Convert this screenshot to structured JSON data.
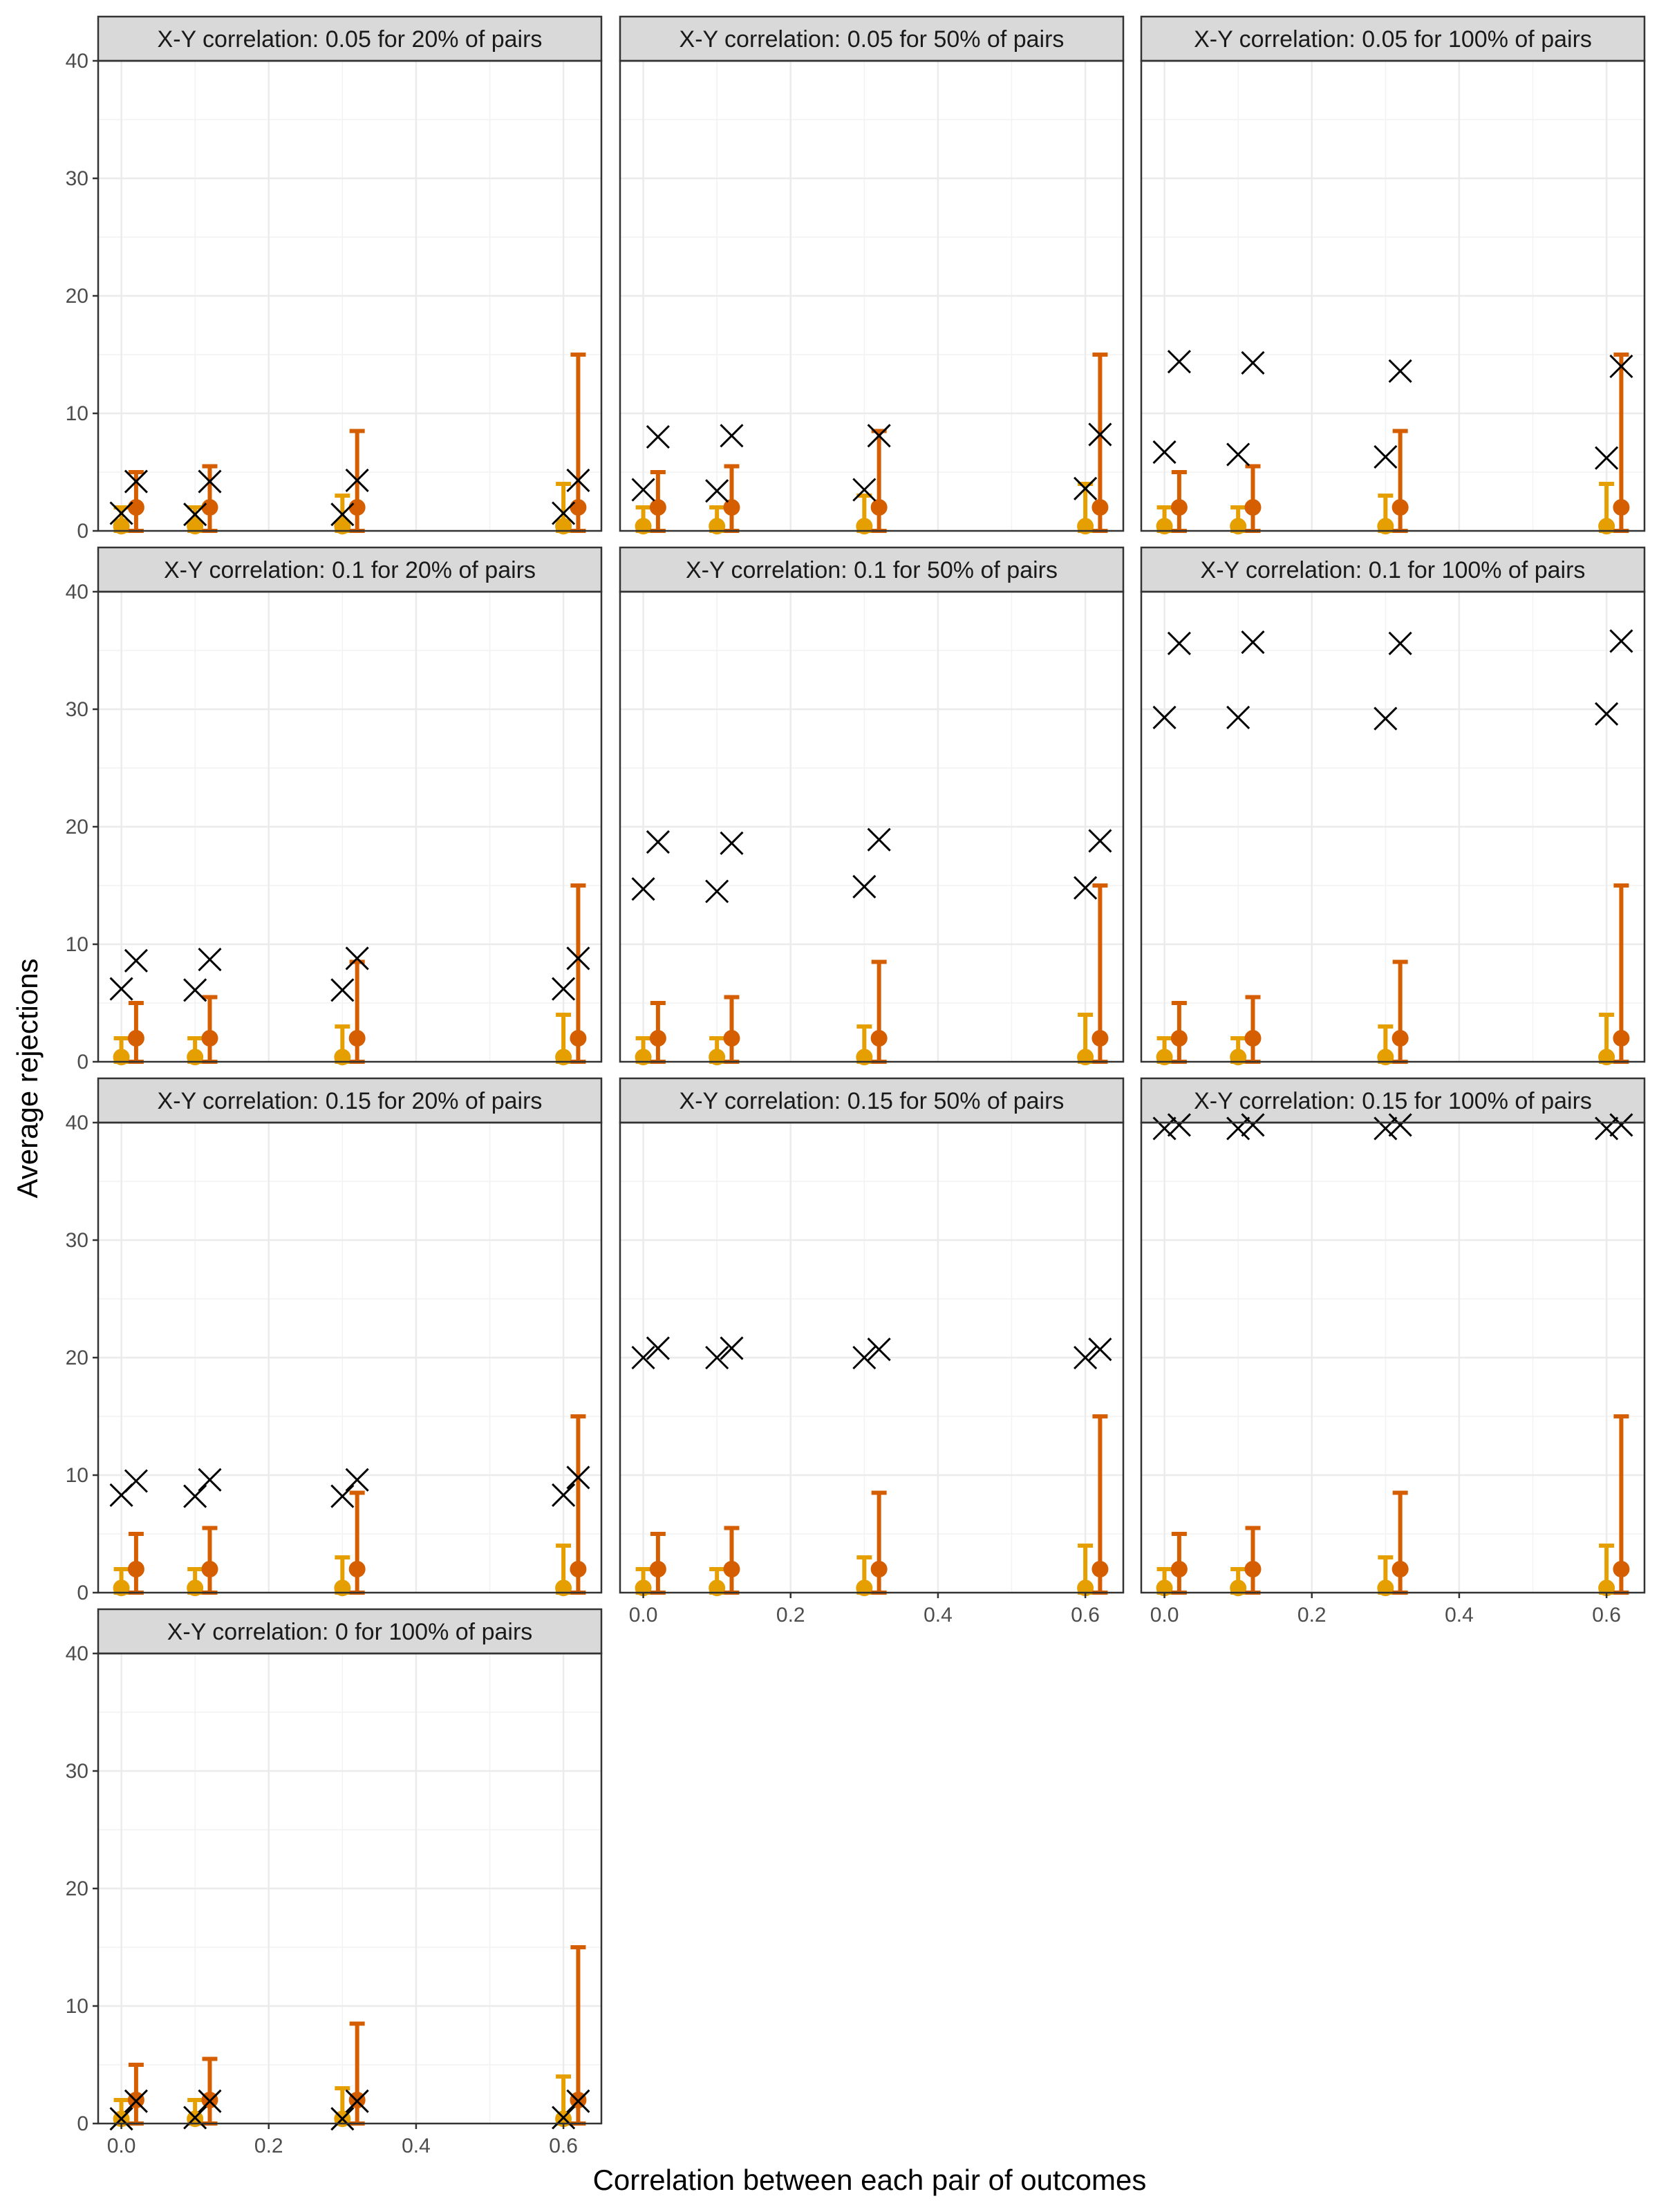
{
  "chart_data": {
    "type": "scatter",
    "xlabel": "Correlation between each pair of outcomes",
    "ylabel": "Average rejections",
    "ylim": [
      0,
      40
    ],
    "yticks": [
      0,
      10,
      20,
      30,
      40
    ],
    "xticks": [
      0.0,
      0.2,
      0.4,
      0.6
    ],
    "xtick_labels": [
      "0.0",
      "0.2",
      "0.4",
      "0.6"
    ],
    "grid": true,
    "legend": "none",
    "colors": {
      "series_a": "#E69F00",
      "series_b": "#D55E00",
      "cross": "#000000"
    },
    "x_values": [
      0,
      0.1,
      0.3,
      0.6
    ],
    "panels": [
      {
        "title": "X-Y correlation: 0.05 for 20% of pairs",
        "series_a": {
          "point": [
            0.4,
            0.4,
            0.4,
            0.4
          ],
          "upper": [
            2,
            2,
            3,
            4
          ]
        },
        "series_b": {
          "point": [
            2,
            2,
            2,
            2
          ],
          "upper": [
            5,
            5.5,
            8.5,
            15
          ]
        },
        "cross_a": [
          1.5,
          1.4,
          1.4,
          1.5
        ],
        "cross_b": [
          4.2,
          4.2,
          4.3,
          4.3
        ]
      },
      {
        "title": "X-Y correlation: 0.05 for 50% of pairs",
        "series_a": {
          "point": [
            0.4,
            0.4,
            0.4,
            0.4
          ],
          "upper": [
            2,
            2,
            3,
            4
          ]
        },
        "series_b": {
          "point": [
            2,
            2,
            2,
            2
          ],
          "upper": [
            5,
            5.5,
            8.5,
            15
          ]
        },
        "cross_a": [
          3.5,
          3.4,
          3.5,
          3.6
        ],
        "cross_b": [
          8,
          8.1,
          8.1,
          8.2
        ]
      },
      {
        "title": "X-Y correlation: 0.05 for 100% of pairs",
        "series_a": {
          "point": [
            0.4,
            0.4,
            0.4,
            0.4
          ],
          "upper": [
            2,
            2,
            3,
            4
          ]
        },
        "series_b": {
          "point": [
            2,
            2,
            2,
            2
          ],
          "upper": [
            5,
            5.5,
            8.5,
            15
          ]
        },
        "cross_a": [
          6.7,
          6.5,
          6.3,
          6.2
        ],
        "cross_b": [
          14.4,
          14.3,
          13.6,
          14
        ]
      },
      {
        "title": "X-Y correlation: 0.1 for 20% of pairs",
        "series_a": {
          "point": [
            0.4,
            0.4,
            0.4,
            0.4
          ],
          "upper": [
            2,
            2,
            3,
            4
          ]
        },
        "series_b": {
          "point": [
            2,
            2,
            2,
            2
          ],
          "upper": [
            5,
            5.5,
            8.5,
            15
          ]
        },
        "cross_a": [
          6.2,
          6.1,
          6.1,
          6.2
        ],
        "cross_b": [
          8.6,
          8.7,
          8.8,
          8.8
        ]
      },
      {
        "title": "X-Y correlation: 0.1 for 50% of pairs",
        "series_a": {
          "point": [
            0.4,
            0.4,
            0.4,
            0.4
          ],
          "upper": [
            2,
            2,
            3,
            4
          ]
        },
        "series_b": {
          "point": [
            2,
            2,
            2,
            2
          ],
          "upper": [
            5,
            5.5,
            8.5,
            15
          ]
        },
        "cross_a": [
          14.7,
          14.5,
          14.9,
          14.8
        ],
        "cross_b": [
          18.7,
          18.6,
          18.9,
          18.8
        ]
      },
      {
        "title": "X-Y correlation: 0.1 for 100% of pairs",
        "series_a": {
          "point": [
            0.4,
            0.4,
            0.4,
            0.4
          ],
          "upper": [
            2,
            2,
            3,
            4
          ]
        },
        "series_b": {
          "point": [
            2,
            2,
            2,
            2
          ],
          "upper": [
            5,
            5.5,
            8.5,
            15
          ]
        },
        "cross_a": [
          29.3,
          29.3,
          29.2,
          29.6
        ],
        "cross_b": [
          35.6,
          35.7,
          35.6,
          35.8
        ]
      },
      {
        "title": "X-Y correlation: 0.15 for 20% of pairs",
        "series_a": {
          "point": [
            0.4,
            0.4,
            0.4,
            0.4
          ],
          "upper": [
            2,
            2,
            3,
            4
          ]
        },
        "series_b": {
          "point": [
            2,
            2,
            2,
            2
          ],
          "upper": [
            5,
            5.5,
            8.5,
            15
          ]
        },
        "cross_a": [
          8.3,
          8.2,
          8.2,
          8.3
        ],
        "cross_b": [
          9.5,
          9.6,
          9.6,
          9.8
        ]
      },
      {
        "title": "X-Y correlation: 0.15 for 50% of pairs",
        "series_a": {
          "point": [
            0.4,
            0.4,
            0.4,
            0.4
          ],
          "upper": [
            2,
            2,
            3,
            4
          ]
        },
        "series_b": {
          "point": [
            2,
            2,
            2,
            2
          ],
          "upper": [
            5,
            5.5,
            8.5,
            15
          ]
        },
        "cross_a": [
          20,
          20,
          20,
          20
        ],
        "cross_b": [
          20.8,
          20.8,
          20.7,
          20.7
        ]
      },
      {
        "title": "X-Y correlation: 0.15 for 100% of pairs",
        "series_a": {
          "point": [
            0.4,
            0.4,
            0.4,
            0.4
          ],
          "upper": [
            2,
            2,
            3,
            4
          ]
        },
        "series_b": {
          "point": [
            2,
            2,
            2,
            2
          ],
          "upper": [
            5,
            5.5,
            8.5,
            15
          ]
        },
        "cross_a": [
          39.5,
          39.5,
          39.5,
          39.5
        ],
        "cross_b": [
          39.8,
          39.8,
          39.8,
          39.8
        ]
      },
      {
        "title": "X-Y correlation: 0 for 100% of pairs",
        "series_a": {
          "point": [
            0.4,
            0.4,
            0.4,
            0.4
          ],
          "upper": [
            2,
            2,
            3,
            4
          ]
        },
        "series_b": {
          "point": [
            2,
            2,
            2,
            2
          ],
          "upper": [
            5,
            5.5,
            8.5,
            15
          ]
        },
        "cross_a": [
          0.4,
          0.5,
          0.4,
          0.5
        ],
        "cross_b": [
          1.9,
          1.9,
          1.9,
          1.9
        ]
      }
    ]
  }
}
